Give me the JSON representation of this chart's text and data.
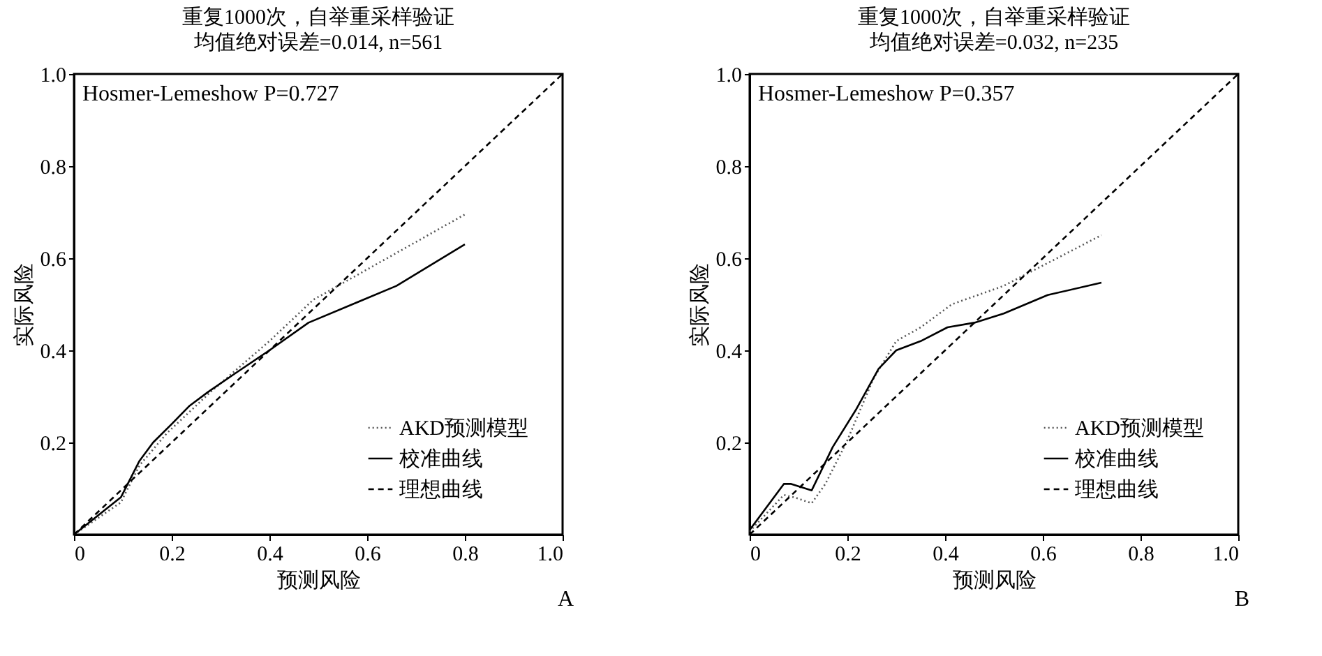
{
  "chart_data": [
    {
      "type": "line",
      "title": "重复1000次，自举重采样验证",
      "subtitle": "均值绝对误差=0.014, n=561",
      "xlabel": "预测风险",
      "ylabel": "实际风险",
      "annotations": [
        "Hosmer-Lemeshow P=0.727",
        "A"
      ],
      "xlim": [
        0,
        1
      ],
      "ylim": [
        0,
        1
      ],
      "xticks": [
        0,
        0.2,
        0.4,
        0.6,
        0.8,
        {
          "value": 1,
          "label": "1.0"
        }
      ],
      "yticks": [
        0.2,
        0.4,
        0.6,
        0.8,
        {
          "value": 1,
          "label": "1.0"
        }
      ],
      "grid": false,
      "legend": "bottom right",
      "series": [
        {
          "name": "AKD预测模型",
          "color": "#555555",
          "line_style": "dotted",
          "x": [
            0,
            0.096,
            0.134,
            0.19,
            0.28,
            0.4,
            0.49,
            0.8
          ],
          "values": [
            0,
            0.07,
            0.15,
            0.22,
            0.31,
            0.42,
            0.51,
            0.695
          ]
        },
        {
          "name": "校准曲线",
          "color": "#000000",
          "line_style": "solid",
          "x": [
            0,
            0.096,
            0.134,
            0.162,
            0.2,
            0.237,
            0.275,
            0.33,
            0.4,
            0.48,
            0.57,
            0.66,
            0.8
          ],
          "values": [
            0,
            0.081,
            0.16,
            0.2,
            0.24,
            0.28,
            0.31,
            0.35,
            0.4,
            0.46,
            0.5,
            0.54,
            0.63
          ]
        },
        {
          "name": "理想曲线",
          "color": "#000000",
          "line_style": "dashed",
          "x": [
            0,
            1
          ],
          "values": [
            0,
            1
          ]
        }
      ]
    },
    {
      "type": "line",
      "title": "重复1000次，自举重采样验证",
      "subtitle": "均值绝对误差=0.032, n=235",
      "xlabel": "预测风险",
      "ylabel": "实际风险",
      "annotations": [
        "Hosmer-Lemeshow P=0.357",
        "B"
      ],
      "xlim": [
        0,
        1
      ],
      "ylim": [
        0,
        1
      ],
      "xticks": [
        0,
        0.2,
        0.4,
        0.6,
        0.8,
        {
          "value": 1,
          "label": "1.0"
        }
      ],
      "yticks": [
        0.2,
        0.4,
        0.6,
        0.8,
        {
          "value": 1,
          "label": "1.0"
        }
      ],
      "grid": false,
      "legend": "bottom right",
      "series": [
        {
          "name": "AKD预测模型",
          "color": "#555555",
          "line_style": "dotted",
          "x": [
            0,
            0.07,
            0.094,
            0.127,
            0.155,
            0.198,
            0.254,
            0.3,
            0.35,
            0.414,
            0.52,
            0.72
          ],
          "values": [
            0.007,
            0.086,
            0.08,
            0.068,
            0.11,
            0.2,
            0.34,
            0.42,
            0.45,
            0.5,
            0.54,
            0.65
          ]
        },
        {
          "name": "校准曲线",
          "color": "#000000",
          "line_style": "solid",
          "x": [
            0,
            0.07,
            0.085,
            0.127,
            0.17,
            0.217,
            0.264,
            0.3,
            0.35,
            0.405,
            0.46,
            0.52,
            0.61,
            0.72
          ],
          "values": [
            0.01,
            0.11,
            0.11,
            0.096,
            0.19,
            0.27,
            0.36,
            0.4,
            0.42,
            0.45,
            0.46,
            0.48,
            0.52,
            0.547
          ]
        },
        {
          "name": "理想曲线",
          "color": "#000000",
          "line_style": "dashed",
          "x": [
            0,
            1
          ],
          "values": [
            0,
            1
          ]
        }
      ]
    }
  ]
}
